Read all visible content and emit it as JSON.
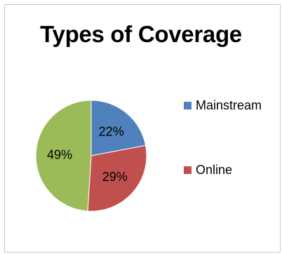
{
  "chart_data": {
    "type": "pie",
    "title": "Types of Coverage",
    "slices": [
      {
        "label": "Mainstream",
        "value": 22,
        "display": "22%",
        "color": "#4f81bd"
      },
      {
        "label": "Online",
        "value": 29,
        "display": "29%",
        "color": "#c0504d"
      },
      {
        "label": "",
        "value": 49,
        "display": "49%",
        "color": "#9bbb59"
      }
    ],
    "legend": {
      "placement": "right",
      "entries": [
        {
          "label": "Mainstream",
          "color": "#4f81bd"
        },
        {
          "label": "Online",
          "color": "#c0504d"
        }
      ]
    }
  }
}
